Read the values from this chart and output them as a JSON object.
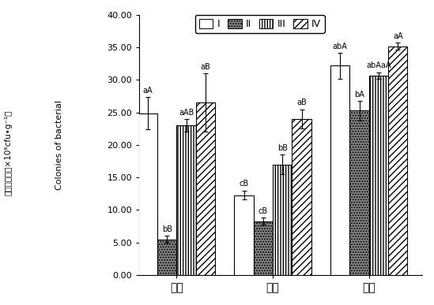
{
  "groups": [
    "秋季",
    "春季",
    "夏季"
  ],
  "series": [
    "I",
    "II",
    "III",
    "IV"
  ],
  "values": [
    [
      24.9,
      5.5,
      23.0,
      26.5
    ],
    [
      12.3,
      8.3,
      17.0,
      24.0
    ],
    [
      32.2,
      25.3,
      30.7,
      35.2
    ]
  ],
  "errors": [
    [
      2.5,
      0.5,
      1.0,
      4.5
    ],
    [
      0.7,
      0.5,
      1.5,
      1.5
    ],
    [
      2.0,
      1.5,
      0.5,
      0.5
    ]
  ],
  "annotations": [
    [
      "aA",
      "bB",
      "aAB",
      "aB"
    ],
    [
      "cB",
      "cB",
      "bB",
      "aB"
    ],
    [
      "abA",
      "bA",
      "abAaA",
      "aA"
    ]
  ],
  "ylim": [
    0,
    40
  ],
  "yticks": [
    0.0,
    5.0,
    10.0,
    15.0,
    20.0,
    25.0,
    30.0,
    35.0,
    40.0
  ],
  "ylabel_cn": "细菌菌落数（×10⁶cfu•g⁻¹）",
  "ylabel_en": "Colonies of bacterial",
  "bar_width": 0.17,
  "colors": [
    "white",
    "#808080",
    "white",
    "white"
  ],
  "hatches_II": "....",
  "hatches_III": "|||",
  "hatches_IV": "///",
  "group_positions": [
    0.38,
    1.23,
    2.08
  ]
}
